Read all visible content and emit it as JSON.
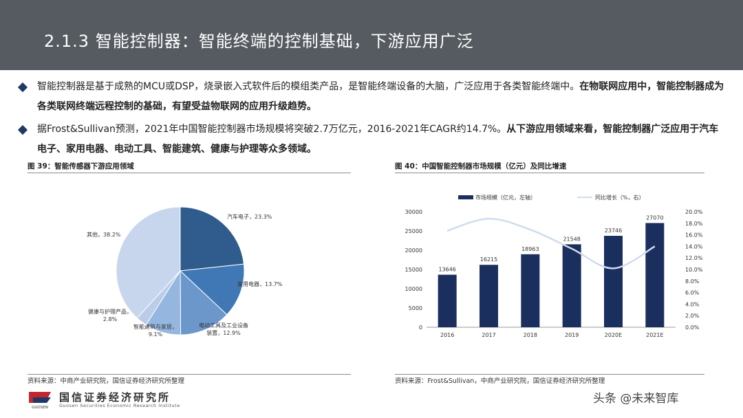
{
  "header": {
    "title": "2.1.3 智能控制器：智能终端的控制基础，下游应用广泛"
  },
  "bullets": [
    {
      "normal": "智能控制器是基于成熟的MCU或DSP，烧录嵌入式软件后的模组类产品，是智能终端设备的大脑，广泛应用于各类智能终端中。",
      "bold": "在物联网应用中，智能控制器成为各类联网终端远程控制的基础，有望受益物联网的应用升级趋势。"
    },
    {
      "normal": "据Frost&Sullivan预测，2021年中国智能控制器市场规模将突破2.7万亿元，2016-2021年CAGR约14.7%。",
      "bold": "从下游应用领域来看，智能控制器广泛应用于汽车电子、家用电器、电动工具、智能建筑、健康与护理等众多领域。"
    }
  ],
  "left_panel": {
    "title": "图 39：智能传感器下游应用领域",
    "source": "资料来源：中商产业研究院，国信证券经济研究所整理"
  },
  "right_panel": {
    "title": "图 40：中国智能控制器市场规模（亿元）及同比增速",
    "source": "资料来源：Frost&Sullivan，中商产业研究院，国信证券经济研究所整理"
  },
  "chart_data": [
    {
      "type": "pie",
      "slices": [
        {
          "label": "汽车电子，23.3%",
          "value": 23.3,
          "color": "#2f5b8d"
        },
        {
          "label": "家用电器，13.7%",
          "value": 13.7,
          "color": "#3f78b5"
        },
        {
          "label": "电动工具及工业设备\n装置，12.9%",
          "value": 12.9,
          "color": "#6b97cb"
        },
        {
          "label": "智能建筑与家居，\n9.1%",
          "value": 9.1,
          "color": "#95b6de"
        },
        {
          "label": "健康与护理产品，\n2.8%",
          "value": 2.8,
          "color": "#b9cde9"
        },
        {
          "label": "其他，38.2%",
          "value": 38.2,
          "color": "#c7d6ec"
        }
      ]
    },
    {
      "type": "bar",
      "categories": [
        "2016",
        "2017",
        "2018",
        "2019",
        "2020E",
        "2021E"
      ],
      "series": [
        {
          "name": "市场规模（亿元，左轴）",
          "values": [
            13646,
            16215,
            18963,
            21548,
            23746,
            27070
          ],
          "color": "#1b2f5e",
          "axis": "left"
        },
        {
          "name": "同比增长（%，右）",
          "values": [
            16.7,
            18.8,
            16.9,
            13.6,
            10.2,
            14.0
          ],
          "color": "#cfdcec",
          "axis": "right",
          "render": "line"
        }
      ],
      "ylim_left": [
        0,
        30000
      ],
      "yticks_left": [
        "0",
        "5000",
        "10000",
        "15000",
        "20000",
        "25000",
        "30000"
      ],
      "ylim_right": [
        0,
        20
      ],
      "yticks_right": [
        "0.0%",
        "2.0%",
        "4.0%",
        "6.0%",
        "8.0%",
        "10.0%",
        "12.0%",
        "14.0%",
        "16.0%",
        "18.0%",
        "20.0%"
      ],
      "legend_position": "top"
    }
  ],
  "footer": {
    "company": "国信证券经济研究所",
    "company_en": "Guosen Securities Economic Research Institute",
    "logo_text": "GUOSEN",
    "watermark": "头条 @未来智库"
  }
}
